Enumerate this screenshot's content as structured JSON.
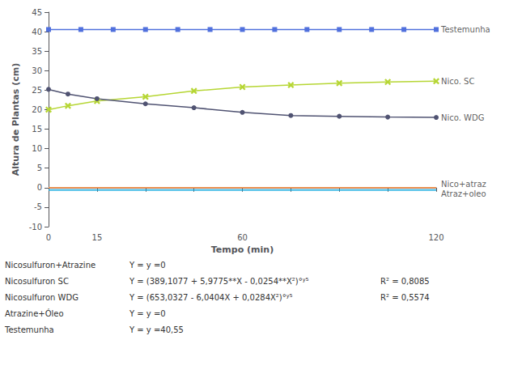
{
  "chart_data": {
    "type": "line",
    "xlabel": "Tempo (min)",
    "ylabel": "Altura de Plantas (cm)",
    "xlim": [
      0,
      120
    ],
    "ylim": [
      -10,
      45
    ],
    "xticks": [
      0,
      15,
      {
        "value": 30,
        "label": ""
      },
      {
        "value": 45,
        "label": ""
      },
      60,
      {
        "value": 75,
        "label": ""
      },
      {
        "value": 90,
        "label": ""
      },
      {
        "value": 105,
        "label": ""
      },
      120
    ],
    "yticks": [
      -10,
      -5,
      0,
      5,
      10,
      15,
      20,
      25,
      30,
      35,
      40,
      45
    ],
    "grid": false,
    "series": [
      {
        "marker": "square",
        "x": [
          0,
          10,
          20,
          30,
          40,
          50,
          60,
          70,
          80,
          90,
          100,
          110,
          120
        ],
        "values": [
          40.55,
          40.55,
          40.55,
          40.55,
          40.55,
          40.55,
          40.55,
          40.55,
          40.55,
          40.55,
          40.55,
          40.55,
          40.55
        ]
      },
      {
        "marker": "x",
        "x": [
          0,
          6,
          15,
          30,
          45,
          60,
          75,
          90,
          105,
          120
        ],
        "values": [
          20.0,
          21.0,
          22.2,
          23.3,
          24.8,
          25.8,
          26.3,
          26.8,
          27.1,
          27.3
        ]
      },
      {
        "marker": "circle",
        "x": [
          0,
          6,
          15,
          30,
          45,
          60,
          75,
          90,
          105,
          120
        ],
        "values": [
          25.2,
          24.0,
          22.8,
          21.5,
          20.5,
          19.3,
          18.5,
          18.3,
          18.1,
          18.0
        ]
      },
      {
        "marker": "none",
        "x": [
          0,
          120
        ],
        "values": [
          0.0,
          0.0
        ]
      },
      {
        "marker": "none",
        "x": [
          0,
          120
        ],
        "values": [
          -0.6,
          -0.6
        ]
      }
    ],
    "annotations": [
      {
        "text": "Testemunha",
        "x": 120,
        "y": 40.55
      },
      {
        "text": "Nico. SC",
        "x": 120,
        "y": 27.3
      },
      {
        "text": "Nico. WDG",
        "x": 120,
        "y": 18.0
      },
      {
        "text": "Nico+atraz",
        "x": 120,
        "y": 0.8
      },
      {
        "text": "Atraz+oleo",
        "x": 120,
        "y": -1.5
      }
    ],
    "footer": [
      [
        "Nicosulfuron+Atrazine",
        "Y = y =0"
      ],
      [
        "Nicosulfuron SC",
        "Y = (389,1077 + 5,9775**X - 0,0254**X²)°ʸ⁵",
        "R² = 0,8085"
      ],
      [
        "Nicosulfuron WDG",
        "Y = (653,0327 - 6,0404X + 0,0284X²)°ʸ⁵",
        "R² = 0,5574"
      ],
      [
        "Atrazine+Óleo",
        "Y = y =0"
      ],
      [
        "Testemunha",
        "Y = y =40,55"
      ]
    ]
  }
}
